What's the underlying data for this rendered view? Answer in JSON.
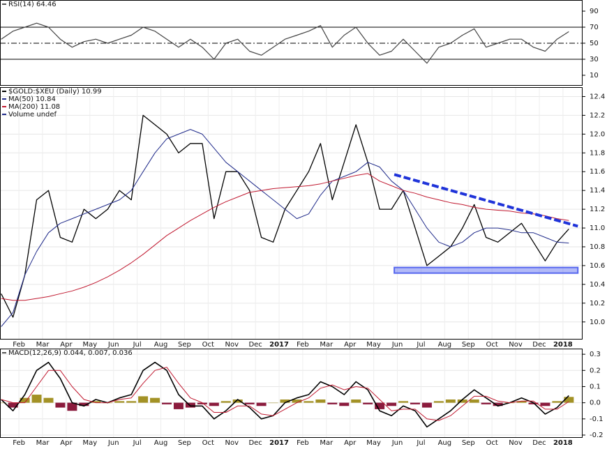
{
  "chart_data": [
    {
      "type": "line",
      "title": "RSI(14) 64.46",
      "x": [
        -0.75,
        -0.25,
        0.25,
        0.75,
        1.25,
        1.75,
        2.25,
        2.75,
        3.25,
        3.75,
        4.25,
        4.75,
        5.25,
        5.75,
        6.25,
        6.75,
        7.25,
        7.75,
        8.25,
        8.75,
        9.25,
        9.75,
        10.25,
        10.75,
        11.25,
        11.75,
        12.25,
        12.75,
        13.25,
        13.75,
        14.25,
        14.75,
        15.25,
        15.75,
        16.25,
        16.75,
        17.25,
        17.75,
        18.25,
        18.75,
        19.25,
        19.75,
        20.25,
        20.75,
        21.25,
        21.75,
        22.25,
        22.75,
        23.25
      ],
      "values": [
        55,
        65,
        70,
        75,
        70,
        55,
        45,
        52,
        55,
        50,
        55,
        60,
        70,
        65,
        55,
        45,
        55,
        45,
        30,
        50,
        55,
        40,
        35,
        45,
        55,
        60,
        65,
        72,
        45,
        60,
        70,
        50,
        35,
        40,
        55,
        40,
        25,
        45,
        50,
        60,
        68,
        45,
        50,
        55,
        55,
        45,
        40,
        55,
        64.46
      ],
      "color": "#444444",
      "xlim": [
        -0.8,
        23.83
      ],
      "ylim": [
        -2.2,
        103.9
      ],
      "yticks": [
        10,
        30,
        50,
        70,
        90
      ],
      "reference_lines": [
        70,
        30
      ],
      "center_line": 50,
      "grid": false
    },
    {
      "type": "line",
      "x": [
        -0.75,
        -0.25,
        0.25,
        0.75,
        1.25,
        1.75,
        2.25,
        2.75,
        3.25,
        3.75,
        4.25,
        4.75,
        5.25,
        5.75,
        6.25,
        6.75,
        7.25,
        7.75,
        8.25,
        8.75,
        9.25,
        9.75,
        10.25,
        10.75,
        11.25,
        11.75,
        12.25,
        12.75,
        13.25,
        13.75,
        14.25,
        14.75,
        15.25,
        15.75,
        16.25,
        16.75,
        17.25,
        17.75,
        18.25,
        18.75,
        19.25,
        19.75,
        20.25,
        20.75,
        21.25,
        21.75,
        22.25,
        22.75,
        23.25
      ],
      "series": [
        {
          "name": "$GOLD:$XEU (Daily) 10.99",
          "color": "#000000",
          "values": [
            10.3,
            10.05,
            10.5,
            11.3,
            11.4,
            10.9,
            10.85,
            11.2,
            11.1,
            11.2,
            11.4,
            11.3,
            12.2,
            12.1,
            12.0,
            11.8,
            11.9,
            11.9,
            11.1,
            11.6,
            11.6,
            11.4,
            10.9,
            10.85,
            11.2,
            11.4,
            11.6,
            11.9,
            11.3,
            11.7,
            12.1,
            11.7,
            11.2,
            11.2,
            11.4,
            11.0,
            10.6,
            10.7,
            10.8,
            11.0,
            11.25,
            10.9,
            10.85,
            10.95,
            11.05,
            10.85,
            10.65,
            10.85,
            10.99
          ]
        },
        {
          "name": "MA(50) 10.84",
          "color": "#1f2a8a",
          "values": [
            9.95,
            10.1,
            10.5,
            10.75,
            10.95,
            11.05,
            11.1,
            11.15,
            11.2,
            11.25,
            11.3,
            11.4,
            11.6,
            11.8,
            11.95,
            12.0,
            12.05,
            12.0,
            11.85,
            11.7,
            11.6,
            11.5,
            11.4,
            11.3,
            11.2,
            11.1,
            11.15,
            11.35,
            11.5,
            11.55,
            11.6,
            11.7,
            11.65,
            11.5,
            11.4,
            11.2,
            11.0,
            10.85,
            10.8,
            10.85,
            10.95,
            11.0,
            11.0,
            10.98,
            10.95,
            10.95,
            10.9,
            10.85,
            10.84
          ]
        },
        {
          "name": "MA(200) 11.08",
          "color": "#c0182f",
          "values": [
            10.25,
            10.23,
            10.23,
            10.25,
            10.27,
            10.3,
            10.33,
            10.37,
            10.42,
            10.48,
            10.55,
            10.63,
            10.72,
            10.82,
            10.92,
            11.0,
            11.08,
            11.15,
            11.22,
            11.28,
            11.33,
            11.38,
            11.4,
            11.42,
            11.43,
            11.44,
            11.45,
            11.47,
            11.5,
            11.53,
            11.56,
            11.58,
            11.5,
            11.45,
            11.4,
            11.37,
            11.33,
            11.3,
            11.27,
            11.25,
            11.22,
            11.2,
            11.19,
            11.18,
            11.16,
            11.15,
            11.13,
            11.1,
            11.08
          ]
        }
      ],
      "volume_label": "Volume undef",
      "trendline": {
        "x": [
          15.87,
          23.63
        ],
        "values": [
          11.57,
          11.02
        ],
        "color": "#1f33d9"
      },
      "support_band": {
        "x": [
          15.87,
          23.63
        ],
        "values": [
          10.52,
          10.58
        ],
        "color": "#5566ee"
      },
      "xlim": [
        -0.8,
        23.83
      ],
      "ylim": [
        9.82,
        12.5
      ],
      "yticks": [
        {
          "value": 10,
          "label": "10.0"
        },
        10.2,
        10.4,
        10.6,
        10.8,
        {
          "value": 11,
          "label": "11.0"
        },
        11.2,
        11.4,
        11.6,
        11.8,
        {
          "value": 12,
          "label": "12.0"
        },
        12.2,
        12.4
      ],
      "xticks": [
        {
          "value": 0,
          "label": "Feb"
        },
        {
          "value": 1,
          "label": "Mar"
        },
        {
          "value": 2,
          "label": "Apr"
        },
        {
          "value": 3,
          "label": "May"
        },
        {
          "value": 4,
          "label": "Jun"
        },
        {
          "value": 5,
          "label": "Jul"
        },
        {
          "value": 6,
          "label": "Aug"
        },
        {
          "value": 7,
          "label": "Sep"
        },
        {
          "value": 8,
          "label": "Oct"
        },
        {
          "value": 9,
          "label": "Nov"
        },
        {
          "value": 10,
          "label": "Dec"
        },
        {
          "value": 11,
          "label": "2017"
        },
        {
          "value": 12,
          "label": "Feb"
        },
        {
          "value": 13,
          "label": "Mar"
        },
        {
          "value": 14,
          "label": "Apr"
        },
        {
          "value": 15,
          "label": "May"
        },
        {
          "value": 16,
          "label": "Jun"
        },
        {
          "value": 17,
          "label": "Jul"
        },
        {
          "value": 18,
          "label": "Aug"
        },
        {
          "value": 19,
          "label": "Sep"
        },
        {
          "value": 20,
          "label": "Oct"
        },
        {
          "value": 21,
          "label": "Nov"
        },
        {
          "value": 22,
          "label": "Dec"
        },
        {
          "value": 23,
          "label": "2018"
        }
      ],
      "bold_xticks": [
        11,
        23
      ],
      "grid": true
    },
    {
      "type": "line",
      "title": "MACD(12,26,9) 0.044, 0.007, 0.036",
      "x": [
        -0.75,
        -0.25,
        0.25,
        0.75,
        1.25,
        1.75,
        2.25,
        2.75,
        3.25,
        3.75,
        4.25,
        4.75,
        5.25,
        5.75,
        6.25,
        6.75,
        7.25,
        7.75,
        8.25,
        8.75,
        9.25,
        9.75,
        10.25,
        10.75,
        11.25,
        11.75,
        12.25,
        12.75,
        13.25,
        13.75,
        14.25,
        14.75,
        15.25,
        15.75,
        16.25,
        16.75,
        17.25,
        17.75,
        18.25,
        18.75,
        19.25,
        19.75,
        20.25,
        20.75,
        21.25,
        21.75,
        22.25,
        22.75,
        23.25
      ],
      "histogram": {
        "values": [
          0,
          -0.03,
          0.03,
          0.05,
          0.03,
          -0.03,
          -0.05,
          -0.02,
          0.01,
          0,
          0.01,
          0.01,
          0.04,
          0.03,
          -0.01,
          -0.04,
          -0.03,
          -0.01,
          -0.02,
          0.01,
          0.02,
          -0.01,
          -0.02,
          0,
          0.02,
          0.02,
          0.01,
          0.02,
          -0.01,
          -0.02,
          0.02,
          -0.01,
          -0.04,
          -0.02,
          0.01,
          -0.01,
          -0.03,
          0.01,
          0.02,
          0.02,
          0.02,
          -0.01,
          -0.02,
          0,
          0.01,
          -0.01,
          -0.02,
          0.01,
          0.036
        ],
        "color_up": "#a39226",
        "color_down": "#8b1b3d"
      },
      "lines": [
        {
          "color": "#000000",
          "values": [
            0.02,
            -0.05,
            0.05,
            0.2,
            0.25,
            0.15,
            0.0,
            -0.02,
            0.02,
            0.0,
            0.03,
            0.05,
            0.2,
            0.25,
            0.2,
            0.05,
            -0.02,
            -0.02,
            -0.1,
            -0.05,
            0.02,
            -0.03,
            -0.1,
            -0.08,
            0.0,
            0.03,
            0.05,
            0.13,
            0.1,
            0.05,
            0.13,
            0.08,
            -0.05,
            -0.08,
            -0.02,
            -0.05,
            -0.15,
            -0.1,
            -0.05,
            0.02,
            0.08,
            0.03,
            -0.02,
            0.0,
            0.03,
            0.0,
            -0.07,
            -0.03,
            0.044
          ]
        },
        {
          "color": "#c0182f",
          "values": [
            0.02,
            0.0,
            0.0,
            0.1,
            0.2,
            0.2,
            0.1,
            0.02,
            0.0,
            0.0,
            0.02,
            0.03,
            0.12,
            0.2,
            0.22,
            0.12,
            0.03,
            0.0,
            -0.06,
            -0.06,
            -0.02,
            -0.02,
            -0.07,
            -0.08,
            -0.04,
            0.0,
            0.03,
            0.09,
            0.11,
            0.08,
            0.1,
            0.09,
            0.02,
            -0.05,
            -0.04,
            -0.04,
            -0.1,
            -0.11,
            -0.08,
            -0.02,
            0.04,
            0.04,
            0.01,
            0.0,
            0.01,
            0.01,
            -0.04,
            -0.04,
            0.007
          ]
        }
      ],
      "xlim": [
        -0.8,
        23.83
      ],
      "ylim": [
        -0.213,
        0.335
      ],
      "yticks": [
        -0.2,
        -0.1,
        {
          "value": 0,
          "label": "0.0"
        },
        0.1,
        0.2,
        0.3
      ],
      "xticks": [
        {
          "value": 0,
          "label": "Feb"
        },
        {
          "value": 1,
          "label": "Mar"
        },
        {
          "value": 2,
          "label": "Apr"
        },
        {
          "value": 3,
          "label": "May"
        },
        {
          "value": 4,
          "label": "Jun"
        },
        {
          "value": 5,
          "label": "Jul"
        },
        {
          "value": 6,
          "label": "Aug"
        },
        {
          "value": 7,
          "label": "Sep"
        },
        {
          "value": 8,
          "label": "Oct"
        },
        {
          "value": 9,
          "label": "Nov"
        },
        {
          "value": 10,
          "label": "Dec"
        },
        {
          "value": 11,
          "label": "2017"
        },
        {
          "value": 12,
          "label": "Feb"
        },
        {
          "value": 13,
          "label": "Mar"
        },
        {
          "value": 14,
          "label": "Apr"
        },
        {
          "value": 15,
          "label": "May"
        },
        {
          "value": 16,
          "label": "Jun"
        },
        {
          "value": 17,
          "label": "Jul"
        },
        {
          "value": 18,
          "label": "Aug"
        },
        {
          "value": 19,
          "label": "Sep"
        },
        {
          "value": 20,
          "label": "Oct"
        },
        {
          "value": 21,
          "label": "Nov"
        },
        {
          "value": 22,
          "label": "Dec"
        },
        {
          "value": 23,
          "label": "2018"
        }
      ],
      "bold_xticks": [
        11,
        23
      ],
      "grid": true
    }
  ]
}
